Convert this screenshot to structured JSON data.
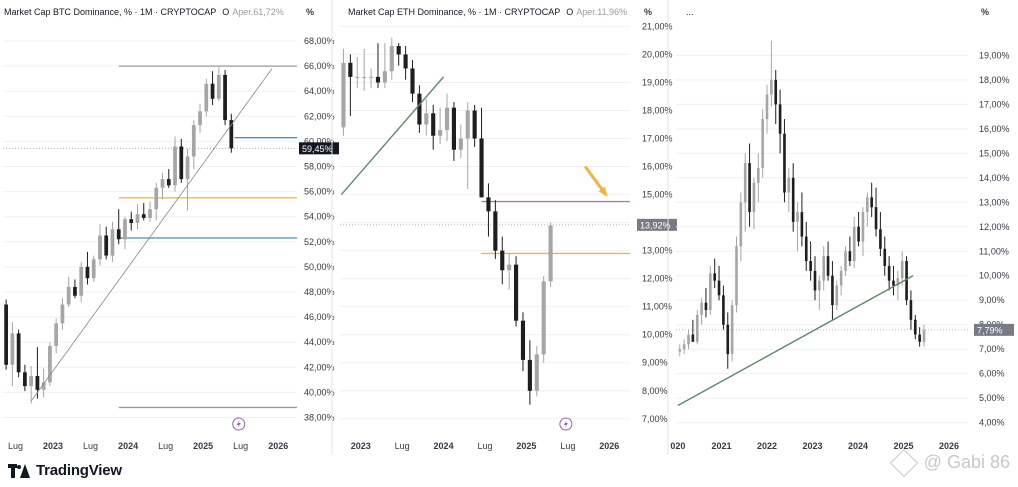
{
  "colors": {
    "bg": "#ffffff",
    "text": "#131722",
    "muted": "#787b86",
    "grid": "#eef0f3",
    "candle_up": "#a6a6a6",
    "candle_down": "#1e1e1e",
    "wick": "#555555",
    "trendline_thin": "#888888",
    "trendline_green": "#5e8a6a",
    "hline_blue": "#4a90b8",
    "hline_orange": "#f2b43c",
    "hline_purple": "#b07aa8",
    "hline_gray": "#999999",
    "arrow": "#f2b43c",
    "badge_dark": "#131722",
    "badge_gray": "#787b86",
    "lightning": "#9a5fb0"
  },
  "footer": {
    "brand": "TradingView",
    "watermark": "@ Gabi 86"
  },
  "chart_data": [
    {
      "type": "candlestick",
      "title": "Market Cap BTC Dominance, % · 1M · CRYPTOCAP",
      "ohlc_prefix": "O",
      "ohlc_value": "Aper.61,72%",
      "axis_unit": "%",
      "y_ticks": [
        "68,00%",
        "66,00%",
        "64,00%",
        "62,00%",
        "60,00%",
        "58,00%",
        "56,00%",
        "54,00%",
        "52,00%",
        "50,00%",
        "48,00%",
        "46,00%",
        "44,00%",
        "42,00%",
        "40,00%",
        "38,00%"
      ],
      "ylim": [
        37.0,
        69.2
      ],
      "x_tick_labels": [
        "Lug",
        "2023",
        "Lug",
        "2024",
        "Lug",
        "2025",
        "Lug",
        "2026"
      ],
      "x_tick_pos": [
        2,
        8,
        14,
        20,
        26,
        32,
        38,
        44
      ],
      "x_range": [
        0,
        47
      ],
      "last_value_badge": "59,45%",
      "last_value": 59.45,
      "candles": [
        {
          "o": 47.0,
          "h": 47.4,
          "l": 41.8,
          "c": 42.2
        },
        {
          "o": 42.2,
          "h": 45.6,
          "l": 40.5,
          "c": 44.7
        },
        {
          "o": 44.7,
          "h": 45.0,
          "l": 41.2,
          "c": 41.6
        },
        {
          "o": 41.6,
          "h": 42.2,
          "l": 40.1,
          "c": 40.5
        },
        {
          "o": 40.5,
          "h": 42.1,
          "l": 39.1,
          "c": 41.3
        },
        {
          "o": 41.3,
          "h": 43.6,
          "l": 39.5,
          "c": 40.2
        },
        {
          "o": 40.2,
          "h": 41.9,
          "l": 39.6,
          "c": 40.8
        },
        {
          "o": 40.8,
          "h": 44.0,
          "l": 40.5,
          "c": 43.7
        },
        {
          "o": 43.7,
          "h": 45.9,
          "l": 43.1,
          "c": 45.5
        },
        {
          "o": 45.5,
          "h": 47.5,
          "l": 45.0,
          "c": 47.0
        },
        {
          "o": 47.0,
          "h": 49.2,
          "l": 46.8,
          "c": 48.4
        },
        {
          "o": 48.4,
          "h": 49.0,
          "l": 47.5,
          "c": 47.7
        },
        {
          "o": 47.7,
          "h": 50.4,
          "l": 47.2,
          "c": 50.0
        },
        {
          "o": 50.0,
          "h": 51.2,
          "l": 48.6,
          "c": 49.1
        },
        {
          "o": 49.1,
          "h": 50.9,
          "l": 48.8,
          "c": 50.6
        },
        {
          "o": 50.6,
          "h": 53.4,
          "l": 50.1,
          "c": 52.5
        },
        {
          "o": 52.5,
          "h": 53.2,
          "l": 50.6,
          "c": 50.9
        },
        {
          "o": 50.9,
          "h": 53.6,
          "l": 50.4,
          "c": 53.0
        },
        {
          "o": 53.0,
          "h": 54.6,
          "l": 51.8,
          "c": 52.2
        },
        {
          "o": 52.2,
          "h": 54.0,
          "l": 51.4,
          "c": 53.8
        },
        {
          "o": 53.8,
          "h": 54.4,
          "l": 52.9,
          "c": 53.5
        },
        {
          "o": 53.5,
          "h": 55.0,
          "l": 53.0,
          "c": 54.2
        },
        {
          "o": 54.2,
          "h": 55.1,
          "l": 53.7,
          "c": 53.9
        },
        {
          "o": 53.9,
          "h": 55.2,
          "l": 53.6,
          "c": 54.6
        },
        {
          "o": 54.6,
          "h": 56.7,
          "l": 53.7,
          "c": 56.3
        },
        {
          "o": 56.3,
          "h": 57.5,
          "l": 55.4,
          "c": 57.0
        },
        {
          "o": 57.0,
          "h": 57.8,
          "l": 56.3,
          "c": 56.5
        },
        {
          "o": 56.5,
          "h": 60.4,
          "l": 56.0,
          "c": 59.6
        },
        {
          "o": 59.6,
          "h": 60.2,
          "l": 56.7,
          "c": 57.0
        },
        {
          "o": 57.0,
          "h": 59.4,
          "l": 54.5,
          "c": 58.8
        },
        {
          "o": 58.8,
          "h": 61.7,
          "l": 57.8,
          "c": 61.3
        },
        {
          "o": 61.3,
          "h": 63.0,
          "l": 60.7,
          "c": 62.4
        },
        {
          "o": 62.4,
          "h": 65.0,
          "l": 62.0,
          "c": 64.6
        },
        {
          "o": 64.6,
          "h": 65.6,
          "l": 62.9,
          "c": 63.4
        },
        {
          "o": 63.4,
          "h": 65.9,
          "l": 63.2,
          "c": 65.3
        },
        {
          "o": 65.3,
          "h": 65.7,
          "l": 61.3,
          "c": 61.7
        },
        {
          "o": 61.7,
          "h": 62.2,
          "l": 59.1,
          "c": 59.45
        }
      ],
      "hlines": [
        {
          "y": 66.0,
          "x1": 18.5,
          "x2": 47,
          "color": "hline_gray"
        },
        {
          "y": 60.3,
          "x1": 37,
          "x2": 47,
          "color": "hline_blue"
        },
        {
          "y": 55.5,
          "x1": 18.5,
          "x2": 47,
          "color": "hline_orange"
        },
        {
          "y": 52.3,
          "x1": 18.5,
          "x2": 47,
          "color": "hline_blue"
        },
        {
          "y": 38.8,
          "x1": 18.5,
          "x2": 47,
          "color": "hline_gray"
        }
      ],
      "trendlines": [
        {
          "x1": 4.5,
          "y1": 39.3,
          "x2": 43.0,
          "y2": 65.8,
          "color": "trendline_thin",
          "width": 0.8
        }
      ],
      "dotted_value_line": 59.45
    },
    {
      "type": "candlestick",
      "title": "Market Cap ETH Dominance, % · 1M · CRYPTOCAP",
      "ohlc_prefix": "O",
      "ohlc_value": "Aper.11,96%",
      "axis_unit": "%",
      "y_ticks": [
        "21,00%",
        "20,00%",
        "19,00%",
        "18,00%",
        "17,00%",
        "16,00%",
        "15,00%",
        "14,00%",
        "13,00%",
        "12,00%",
        "11,00%",
        "10,00%",
        "9,00%",
        "8,00%",
        "7,00%"
      ],
      "ylim": [
        6.6,
        21.3
      ],
      "x_tick_labels": [
        "2023",
        "Lug",
        "2024",
        "Lug",
        "2025",
        "Lug",
        "2026"
      ],
      "x_tick_pos": [
        3,
        9,
        15,
        21,
        27,
        33,
        39
      ],
      "x_range": [
        0,
        42
      ],
      "last_value_badge": "13,92%",
      "last_value": 13.92,
      "candles": [
        {
          "o": 17.4,
          "h": 20.2,
          "l": 17.1,
          "c": 19.7
        },
        {
          "o": 19.7,
          "h": 20.0,
          "l": 17.8,
          "c": 19.2
        },
        {
          "o": 19.2,
          "h": 19.9,
          "l": 18.8,
          "c": 19.2
        },
        {
          "o": 19.2,
          "h": 20.2,
          "l": 18.7,
          "c": 19.2
        },
        {
          "o": 19.2,
          "h": 19.5,
          "l": 18.8,
          "c": 19.2
        },
        {
          "o": 19.2,
          "h": 20.4,
          "l": 18.8,
          "c": 19.0
        },
        {
          "o": 19.0,
          "h": 20.4,
          "l": 18.8,
          "c": 19.4
        },
        {
          "o": 19.4,
          "h": 20.6,
          "l": 19.1,
          "c": 20.3
        },
        {
          "o": 20.3,
          "h": 20.4,
          "l": 19.6,
          "c": 20.0
        },
        {
          "o": 20.0,
          "h": 20.3,
          "l": 19.1,
          "c": 19.5
        },
        {
          "o": 19.5,
          "h": 19.8,
          "l": 18.3,
          "c": 18.6
        },
        {
          "o": 18.6,
          "h": 18.9,
          "l": 17.2,
          "c": 17.5
        },
        {
          "o": 17.5,
          "h": 18.4,
          "l": 17.1,
          "c": 17.9
        },
        {
          "o": 17.9,
          "h": 18.2,
          "l": 16.6,
          "c": 17.1
        },
        {
          "o": 17.1,
          "h": 18.1,
          "l": 16.8,
          "c": 17.3
        },
        {
          "o": 17.3,
          "h": 18.6,
          "l": 16.9,
          "c": 18.1
        },
        {
          "o": 18.1,
          "h": 18.3,
          "l": 16.2,
          "c": 16.6
        },
        {
          "o": 16.6,
          "h": 17.5,
          "l": 16.3,
          "c": 17.0
        },
        {
          "o": 17.0,
          "h": 18.3,
          "l": 15.2,
          "c": 18.0
        },
        {
          "o": 18.0,
          "h": 18.2,
          "l": 16.7,
          "c": 17.0
        },
        {
          "o": 17.0,
          "h": 18.1,
          "l": 14.9,
          "c": 14.9
        },
        {
          "o": 14.9,
          "h": 15.4,
          "l": 13.5,
          "c": 14.4
        },
        {
          "o": 14.4,
          "h": 14.8,
          "l": 12.7,
          "c": 13.0
        },
        {
          "o": 13.0,
          "h": 13.5,
          "l": 11.8,
          "c": 12.3
        },
        {
          "o": 12.3,
          "h": 12.9,
          "l": 11.6,
          "c": 12.5
        },
        {
          "o": 12.5,
          "h": 12.8,
          "l": 10.3,
          "c": 10.5
        },
        {
          "o": 10.5,
          "h": 10.8,
          "l": 8.7,
          "c": 9.1
        },
        {
          "o": 9.1,
          "h": 9.8,
          "l": 7.5,
          "c": 8.0
        },
        {
          "o": 8.0,
          "h": 9.6,
          "l": 7.8,
          "c": 9.3
        },
        {
          "o": 9.3,
          "h": 12.1,
          "l": 9.0,
          "c": 11.9
        },
        {
          "o": 11.9,
          "h": 14.0,
          "l": 11.7,
          "c": 13.9
        }
      ],
      "hlines": [
        {
          "y": 14.75,
          "x1": 20.5,
          "x2": 42,
          "color": "hline_purple"
        },
        {
          "y": 12.9,
          "x1": 20.5,
          "x2": 42,
          "color": "hline_orange"
        }
      ],
      "trendlines": [
        {
          "x1": 0.2,
          "y1": 15.0,
          "x2": 15.0,
          "y2": 19.2,
          "color": "trendline_green",
          "width": 1.4
        }
      ],
      "dotted_value_line": 13.92,
      "arrow": {
        "x1": 35.5,
        "y1": 16.0,
        "x2": 38.5,
        "y2": 15.0
      }
    },
    {
      "type": "candlestick",
      "title": "...",
      "axis_unit": "%",
      "y_ticks": [
        "19,00%",
        "18,00%",
        "17,00%",
        "16,00%",
        "15,00%",
        "14,00%",
        "13,00%",
        "12,00%",
        "11,00%",
        "10,00%",
        "9,00%",
        "8,00%",
        "7,00%",
        "6,00%",
        "5,00%",
        "4,00%"
      ],
      "ylim": [
        3.7,
        20.2
      ],
      "x_tick_labels": [
        "020",
        "2021",
        "2022",
        "2023",
        "2024",
        "2025",
        "2026"
      ],
      "x_tick_pos": [
        0.5,
        12,
        24,
        36,
        48,
        60,
        72
      ],
      "x_range": [
        0,
        77
      ],
      "last_value_badge": "7,79%",
      "last_value": 7.79,
      "candles": [
        {
          "o": 6.9,
          "h": 7.2,
          "l": 6.7,
          "c": 7.0
        },
        {
          "o": 7.0,
          "h": 7.4,
          "l": 6.8,
          "c": 7.2
        },
        {
          "o": 7.2,
          "h": 7.8,
          "l": 7.0,
          "c": 7.6
        },
        {
          "o": 7.6,
          "h": 8.2,
          "l": 7.4,
          "c": 7.3
        },
        {
          "o": 7.3,
          "h": 8.6,
          "l": 7.2,
          "c": 8.4
        },
        {
          "o": 8.4,
          "h": 9.1,
          "l": 8.0,
          "c": 8.9
        },
        {
          "o": 8.9,
          "h": 9.5,
          "l": 8.3,
          "c": 8.6
        },
        {
          "o": 8.6,
          "h": 10.4,
          "l": 8.4,
          "c": 10.1
        },
        {
          "o": 10.1,
          "h": 10.7,
          "l": 9.5,
          "c": 9.8
        },
        {
          "o": 9.8,
          "h": 10.4,
          "l": 9.0,
          "c": 9.2
        },
        {
          "o": 9.2,
          "h": 9.6,
          "l": 7.8,
          "c": 8.0
        },
        {
          "o": 8.0,
          "h": 8.5,
          "l": 6.2,
          "c": 6.8
        },
        {
          "o": 6.8,
          "h": 9.0,
          "l": 6.5,
          "c": 8.8
        },
        {
          "o": 8.8,
          "h": 11.6,
          "l": 8.5,
          "c": 11.2
        },
        {
          "o": 11.2,
          "h": 13.4,
          "l": 10.6,
          "c": 13.0
        },
        {
          "o": 13.0,
          "h": 15.0,
          "l": 11.8,
          "c": 14.6
        },
        {
          "o": 14.6,
          "h": 15.4,
          "l": 12.0,
          "c": 12.6
        },
        {
          "o": 12.6,
          "h": 14.0,
          "l": 11.9,
          "c": 13.8
        },
        {
          "o": 13.8,
          "h": 15.0,
          "l": 13.0,
          "c": 14.4
        },
        {
          "o": 14.4,
          "h": 16.8,
          "l": 14.0,
          "c": 16.4
        },
        {
          "o": 16.4,
          "h": 17.8,
          "l": 15.8,
          "c": 17.4
        },
        {
          "o": 17.4,
          "h": 19.6,
          "l": 16.9,
          "c": 18.0
        },
        {
          "o": 18.0,
          "h": 18.4,
          "l": 16.2,
          "c": 17.0
        },
        {
          "o": 17.0,
          "h": 17.6,
          "l": 15.0,
          "c": 15.8
        },
        {
          "o": 15.8,
          "h": 16.4,
          "l": 13.0,
          "c": 13.4
        },
        {
          "o": 13.4,
          "h": 14.4,
          "l": 12.6,
          "c": 14.0
        },
        {
          "o": 14.0,
          "h": 14.6,
          "l": 11.8,
          "c": 12.2
        },
        {
          "o": 12.2,
          "h": 13.0,
          "l": 11.0,
          "c": 12.6
        },
        {
          "o": 12.6,
          "h": 13.4,
          "l": 11.2,
          "c": 11.6
        },
        {
          "o": 11.6,
          "h": 12.2,
          "l": 10.2,
          "c": 10.6
        },
        {
          "o": 10.6,
          "h": 11.4,
          "l": 9.8,
          "c": 10.2
        },
        {
          "o": 10.2,
          "h": 10.8,
          "l": 9.0,
          "c": 9.4
        },
        {
          "o": 9.4,
          "h": 10.0,
          "l": 8.6,
          "c": 9.8
        },
        {
          "o": 9.8,
          "h": 11.2,
          "l": 9.4,
          "c": 10.8
        },
        {
          "o": 10.8,
          "h": 11.4,
          "l": 9.8,
          "c": 10.0
        },
        {
          "o": 10.0,
          "h": 10.6,
          "l": 8.2,
          "c": 8.8
        },
        {
          "o": 8.8,
          "h": 9.8,
          "l": 8.6,
          "c": 9.6
        },
        {
          "o": 9.6,
          "h": 10.4,
          "l": 9.2,
          "c": 10.2
        },
        {
          "o": 10.2,
          "h": 11.2,
          "l": 10.0,
          "c": 11.0
        },
        {
          "o": 11.0,
          "h": 11.6,
          "l": 10.4,
          "c": 10.6
        },
        {
          "o": 10.6,
          "h": 12.4,
          "l": 10.3,
          "c": 12.0
        },
        {
          "o": 12.0,
          "h": 12.6,
          "l": 11.2,
          "c": 11.4
        },
        {
          "o": 11.4,
          "h": 12.8,
          "l": 10.8,
          "c": 12.6
        },
        {
          "o": 12.6,
          "h": 13.4,
          "l": 12.0,
          "c": 13.2
        },
        {
          "o": 13.2,
          "h": 13.8,
          "l": 12.4,
          "c": 12.8
        },
        {
          "o": 12.8,
          "h": 13.6,
          "l": 11.6,
          "c": 11.9
        },
        {
          "o": 11.9,
          "h": 12.6,
          "l": 10.8,
          "c": 11.1
        },
        {
          "o": 11.1,
          "h": 11.6,
          "l": 10.0,
          "c": 10.4
        },
        {
          "o": 10.4,
          "h": 10.8,
          "l": 9.4,
          "c": 9.8
        },
        {
          "o": 9.8,
          "h": 10.4,
          "l": 9.2,
          "c": 9.6
        },
        {
          "o": 9.6,
          "h": 10.2,
          "l": 9.0,
          "c": 9.9
        },
        {
          "o": 9.9,
          "h": 11.0,
          "l": 9.6,
          "c": 10.6
        },
        {
          "o": 10.6,
          "h": 10.8,
          "l": 8.8,
          "c": 9.0
        },
        {
          "o": 9.0,
          "h": 9.4,
          "l": 7.8,
          "c": 8.2
        },
        {
          "o": 8.2,
          "h": 8.4,
          "l": 7.4,
          "c": 7.6
        },
        {
          "o": 7.6,
          "h": 7.9,
          "l": 7.1,
          "c": 7.3
        },
        {
          "o": 7.3,
          "h": 8.0,
          "l": 7.1,
          "c": 7.79
        }
      ],
      "candle_x0": 1,
      "candle_step": 1.15,
      "hlines": [],
      "trendlines": [
        {
          "x1": 0.5,
          "y1": 4.7,
          "x2": 62.5,
          "y2": 10.0,
          "color": "trendline_green",
          "width": 1.4
        }
      ],
      "dotted_value_line": 7.79
    }
  ]
}
